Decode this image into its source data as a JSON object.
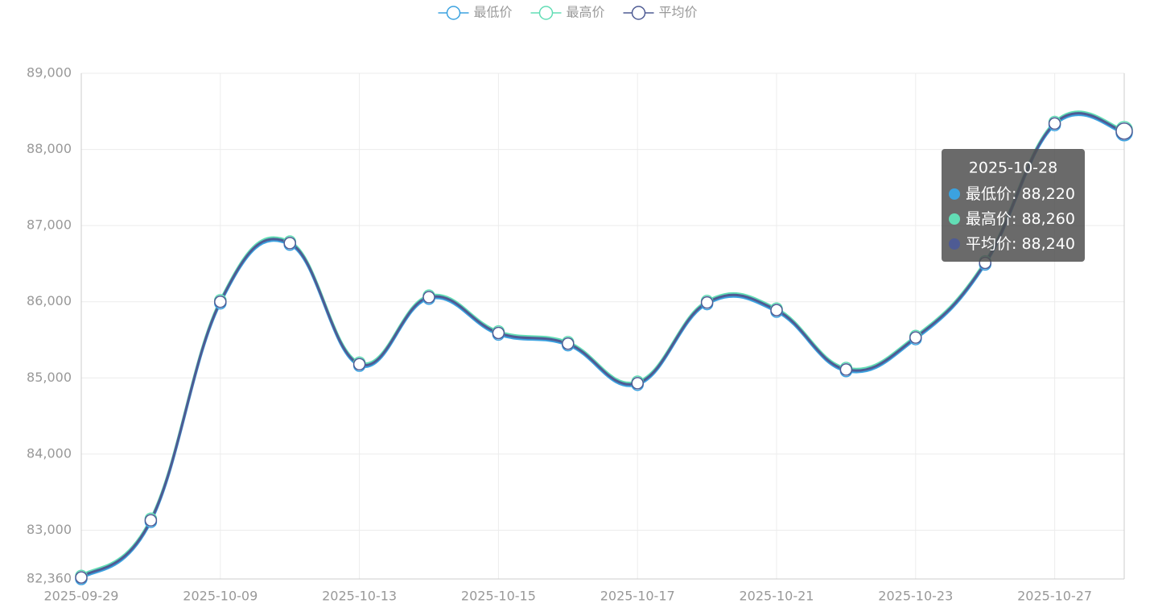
{
  "chart_data": {
    "type": "line",
    "categories": [
      "2025-09-29",
      null,
      "2025-10-09",
      null,
      "2025-10-13",
      null,
      "2025-10-15",
      null,
      "2025-10-17",
      null,
      "2025-10-21",
      null,
      "2025-10-23",
      null,
      "2025-10-27",
      "2025-10-28"
    ],
    "series": [
      {
        "name": "最低价",
        "color": "#3ba2e0",
        "values": [
          82360,
          83110,
          85980,
          86750,
          85160,
          86040,
          85570,
          85430,
          84910,
          85970,
          85870,
          85090,
          85510,
          86490,
          88320,
          88220
        ],
        "value_labels": [
          null,
          null,
          null,
          null,
          null,
          null,
          null,
          null,
          null,
          null,
          null,
          null,
          null,
          null,
          null,
          "88,220"
        ]
      },
      {
        "name": "最高价",
        "color": "#62ddb5",
        "values": [
          82400,
          83150,
          86020,
          86790,
          85200,
          86080,
          85610,
          85470,
          84950,
          86010,
          85910,
          85130,
          85550,
          86530,
          88360,
          88260
        ],
        "value_labels": [
          null,
          null,
          null,
          null,
          null,
          null,
          null,
          null,
          null,
          null,
          null,
          null,
          null,
          null,
          null,
          "88,260"
        ]
      },
      {
        "name": "平均价",
        "color": "#4e5b94",
        "values": [
          82380,
          83130,
          86000,
          86770,
          85180,
          86060,
          85590,
          85450,
          84930,
          85990,
          85890,
          85110,
          85530,
          86510,
          88340,
          88240
        ],
        "value_labels": [
          null,
          null,
          null,
          null,
          null,
          null,
          null,
          null,
          null,
          null,
          null,
          null,
          null,
          null,
          null,
          "88,240"
        ]
      }
    ],
    "ylim": [
      82360,
      89000
    ],
    "yticks": [
      {
        "value": 82360,
        "label": "82,360"
      },
      {
        "value": 83000,
        "label": "83,000"
      },
      {
        "value": 84000,
        "label": "84,000"
      },
      {
        "value": 85000,
        "label": "85,000"
      },
      {
        "value": 86000,
        "label": "86,000"
      },
      {
        "value": 87000,
        "label": "87,000"
      },
      {
        "value": 88000,
        "label": "88,000"
      },
      {
        "value": 89000,
        "label": "89,000"
      }
    ],
    "grid": true,
    "legend": "top",
    "tooltip_index": 15
  }
}
